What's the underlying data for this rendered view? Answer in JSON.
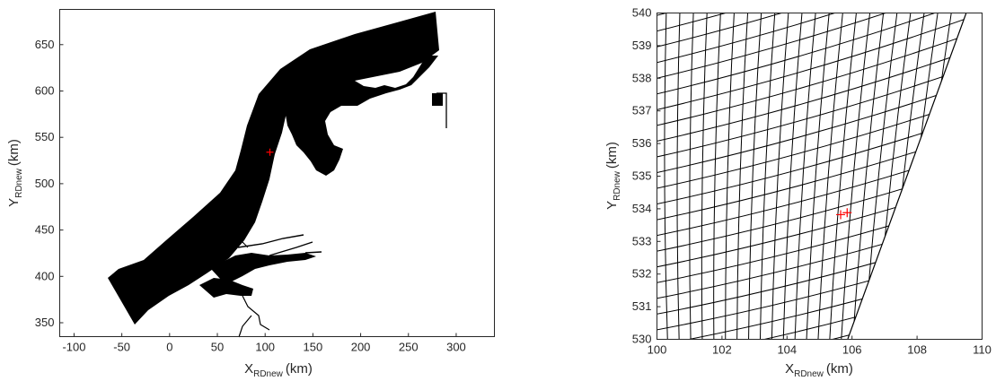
{
  "chart_data": [
    {
      "type": "mesh",
      "xlabel": {
        "main": "X",
        "sub": "RDnew",
        "unit": "(km)"
      },
      "ylabel": {
        "main": "Y",
        "sub": "RDnew",
        "unit": "(km)"
      },
      "xlim": [
        -115,
        340
      ],
      "ylim": [
        335,
        688
      ],
      "xticks": [
        -100,
        -50,
        0,
        50,
        100,
        150,
        200,
        250,
        300
      ],
      "yticks": [
        350,
        400,
        450,
        500,
        550,
        600,
        650
      ],
      "grid": false,
      "marker": {
        "x": 105,
        "y": 534,
        "symbol": "+",
        "color": "#ff0000"
      },
      "colors": {
        "mesh": "#000000",
        "axes": "#262626"
      }
    },
    {
      "type": "mesh",
      "xlabel": {
        "main": "X",
        "sub": "RDnew",
        "unit": "(km)"
      },
      "ylabel": {
        "main": "Y",
        "sub": "RDnew",
        "unit": "(km)"
      },
      "xlim": [
        100,
        110
      ],
      "ylim": [
        530,
        540
      ],
      "xticks": [
        100,
        102,
        104,
        106,
        108,
        110
      ],
      "yticks": [
        530,
        531,
        532,
        533,
        534,
        535,
        536,
        537,
        538,
        539,
        540
      ],
      "grid": false,
      "markers": [
        {
          "x": 105.65,
          "y": 533.82,
          "symbol": "+",
          "color": "#ff0000"
        },
        {
          "x": 105.85,
          "y": 533.88,
          "symbol": "+",
          "color": "#ff0000"
        }
      ],
      "colors": {
        "mesh": "#000000",
        "axes": "#262626"
      }
    }
  ]
}
